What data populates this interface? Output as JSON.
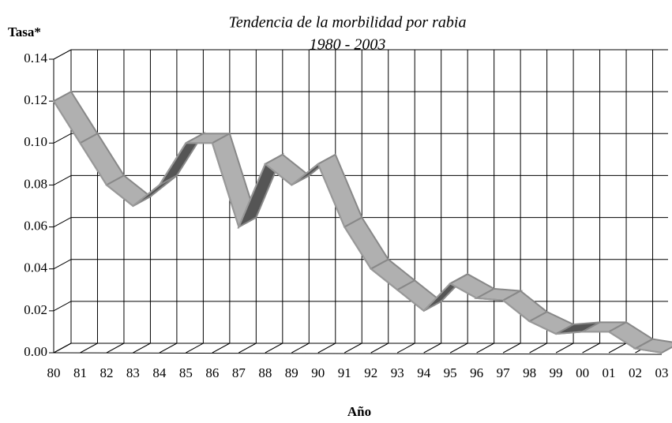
{
  "chart_data": {
    "type": "line",
    "title": "Tendencia de la morbilidad por rabia",
    "subtitle": "1980 - 2003",
    "y_label": "Tasa*",
    "x_label": "Año",
    "categories": [
      "80",
      "81",
      "82",
      "83",
      "84",
      "85",
      "86",
      "87",
      "88",
      "89",
      "90",
      "91",
      "92",
      "93",
      "94",
      "95",
      "96",
      "97",
      "98",
      "99",
      "00",
      "01",
      "02",
      "03"
    ],
    "series": [
      {
        "name": "Tasa",
        "color": "#b0b0b0",
        "values": [
          0.12,
          0.1,
          0.08,
          0.07,
          0.08,
          0.1,
          0.1,
          0.06,
          0.09,
          0.08,
          0.09,
          0.06,
          0.04,
          0.03,
          0.02,
          0.033,
          0.026,
          0.025,
          0.015,
          0.009,
          0.01,
          0.01,
          0.002,
          0.0
        ]
      }
    ],
    "ylim": [
      0,
      0.14
    ],
    "yticks": [
      {
        "value": 0,
        "label": "0.00"
      },
      0.02,
      0.04,
      0.06,
      0.08,
      {
        "value": 0.1,
        "label": "0.10"
      },
      0.12,
      0.14
    ],
    "grid": true
  }
}
